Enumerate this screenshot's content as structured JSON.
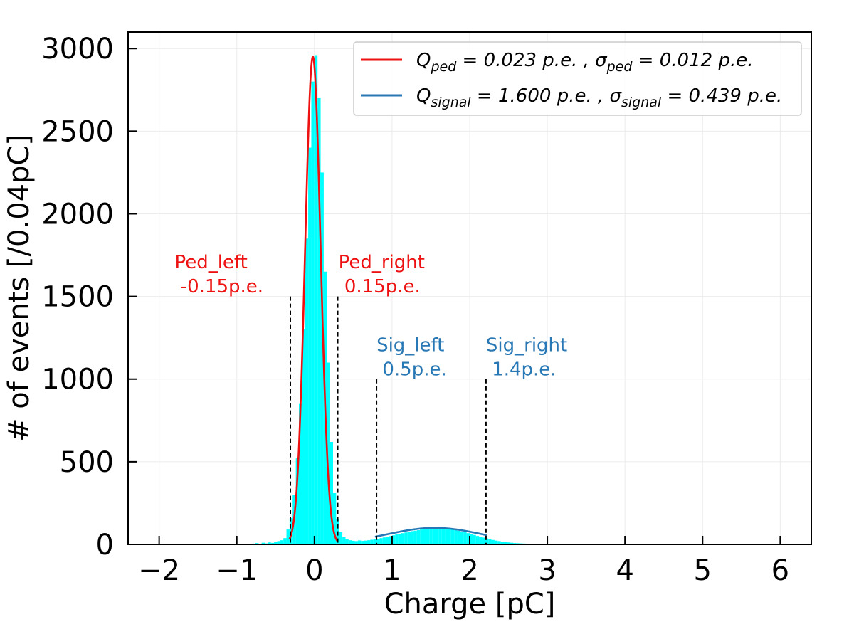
{
  "chart_data": {
    "type": "bar",
    "xlabel": "Charge [pC]",
    "ylabel": "# of events [/0.04pC]",
    "xlim": [
      -2.4,
      6.4
    ],
    "ylim": [
      0,
      3100
    ],
    "xticks": [
      -2,
      -1,
      0,
      1,
      2,
      3,
      4,
      5,
      6
    ],
    "xtick_labels": [
      "−2",
      "−1",
      "0",
      "1",
      "2",
      "3",
      "4",
      "5",
      "6"
    ],
    "yticks": [
      0,
      500,
      1000,
      1500,
      2000,
      2500,
      3000
    ],
    "ytick_labels": [
      "0",
      "500",
      "1000",
      "1500",
      "2000",
      "2500",
      "3000"
    ],
    "grid": true,
    "bin_width": 0.04,
    "histogram": {
      "name": "Charge histogram",
      "color": "#00ffff",
      "bins": [
        [
          -0.8,
          5
        ],
        [
          -0.76,
          8
        ],
        [
          -0.72,
          4
        ],
        [
          -0.68,
          10
        ],
        [
          -0.64,
          6
        ],
        [
          -0.6,
          12
        ],
        [
          -0.56,
          9
        ],
        [
          -0.52,
          15
        ],
        [
          -0.48,
          20
        ],
        [
          -0.44,
          25
        ],
        [
          -0.4,
          38
        ],
        [
          -0.36,
          90
        ],
        [
          -0.32,
          160
        ],
        [
          -0.28,
          300
        ],
        [
          -0.24,
          520
        ],
        [
          -0.2,
          850
        ],
        [
          -0.16,
          1300
        ],
        [
          -0.12,
          1850
        ],
        [
          -0.08,
          2400
        ],
        [
          -0.04,
          2800
        ],
        [
          0.0,
          2960
        ],
        [
          0.04,
          2700
        ],
        [
          0.08,
          2250
        ],
        [
          0.12,
          1650
        ],
        [
          0.16,
          1100
        ],
        [
          0.2,
          620
        ],
        [
          0.24,
          310
        ],
        [
          0.28,
          150
        ],
        [
          0.32,
          75
        ],
        [
          0.36,
          45
        ],
        [
          0.4,
          30
        ],
        [
          0.44,
          25
        ],
        [
          0.48,
          22
        ],
        [
          0.52,
          20
        ],
        [
          0.56,
          24
        ],
        [
          0.6,
          21
        ],
        [
          0.64,
          23
        ],
        [
          0.68,
          25
        ],
        [
          0.72,
          28
        ],
        [
          0.76,
          30
        ],
        [
          0.8,
          34
        ],
        [
          0.84,
          38
        ],
        [
          0.88,
          42
        ],
        [
          0.92,
          45
        ],
        [
          0.96,
          50
        ],
        [
          1.0,
          55
        ],
        [
          1.04,
          60
        ],
        [
          1.08,
          63
        ],
        [
          1.12,
          68
        ],
        [
          1.16,
          72
        ],
        [
          1.2,
          75
        ],
        [
          1.24,
          80
        ],
        [
          1.28,
          83
        ],
        [
          1.32,
          86
        ],
        [
          1.36,
          90
        ],
        [
          1.4,
          92
        ],
        [
          1.44,
          95
        ],
        [
          1.48,
          97
        ],
        [
          1.52,
          98
        ],
        [
          1.56,
          99
        ],
        [
          1.6,
          98
        ],
        [
          1.64,
          97
        ],
        [
          1.68,
          95
        ],
        [
          1.72,
          93
        ],
        [
          1.76,
          90
        ],
        [
          1.8,
          86
        ],
        [
          1.84,
          82
        ],
        [
          1.88,
          78
        ],
        [
          1.92,
          73
        ],
        [
          1.96,
          68
        ],
        [
          2.0,
          62
        ],
        [
          2.04,
          57
        ],
        [
          2.08,
          51
        ],
        [
          2.12,
          46
        ],
        [
          2.16,
          41
        ],
        [
          2.2,
          36
        ],
        [
          2.24,
          31
        ],
        [
          2.28,
          27
        ],
        [
          2.32,
          23
        ],
        [
          2.36,
          20
        ],
        [
          2.4,
          17
        ],
        [
          2.44,
          14
        ],
        [
          2.48,
          12
        ],
        [
          2.52,
          10
        ],
        [
          2.56,
          8
        ],
        [
          2.6,
          7
        ],
        [
          2.64,
          6
        ],
        [
          2.68,
          5
        ],
        [
          2.72,
          4
        ],
        [
          2.76,
          4
        ],
        [
          2.8,
          3
        ],
        [
          2.84,
          3
        ],
        [
          2.88,
          2
        ],
        [
          2.92,
          2
        ],
        [
          2.96,
          2
        ],
        [
          3.0,
          1
        ]
      ]
    },
    "fits": [
      {
        "name": "ped_fit",
        "color": "#ee1111",
        "amplitude": 2950,
        "mean": -0.02,
        "sigma": 0.1,
        "x_range": [
          -0.32,
          0.3
        ]
      },
      {
        "name": "signal_fit",
        "color": "#2878b5",
        "amplitude": 100,
        "mean": 1.55,
        "sigma": 0.62,
        "x_range": [
          0.78,
          2.22
        ]
      }
    ],
    "cut_lines": [
      {
        "name": "ped-left",
        "x": -0.31,
        "ymax": 1500
      },
      {
        "name": "ped-right",
        "x": 0.3,
        "ymax": 1500
      },
      {
        "name": "sig-left",
        "x": 0.8,
        "ymax": 1000
      },
      {
        "name": "sig-right",
        "x": 2.21,
        "ymax": 1000
      }
    ],
    "annotations": [
      {
        "name": "ped-left",
        "lines": [
          "Ped_left",
          " -0.15p.e."
        ],
        "color": "#ee1111",
        "x": -1.8,
        "y": 1670
      },
      {
        "name": "ped-right",
        "lines": [
          "Ped_right",
          " 0.15p.e."
        ],
        "color": "#ee1111",
        "x": 0.31,
        "y": 1670
      },
      {
        "name": "sig-left",
        "lines": [
          "Sig_left",
          " 0.5p.e."
        ],
        "color": "#2878b5",
        "x": 0.8,
        "y": 1170
      },
      {
        "name": "sig-right",
        "lines": [
          "Sig_right",
          " 1.4p.e."
        ],
        "color": "#2878b5",
        "x": 2.21,
        "y": 1170
      }
    ],
    "legend": {
      "position": "top-right",
      "entries": [
        {
          "name": "ped",
          "color": "#ee1111",
          "label": "Q_ped = 0.023 p.e. , σ_ped = 0.012 p.e."
        },
        {
          "name": "signal",
          "color": "#2878b5",
          "label": "Q_signal = 1.600 p.e. , σ_signal = 0.439 p.e."
        }
      ]
    }
  }
}
